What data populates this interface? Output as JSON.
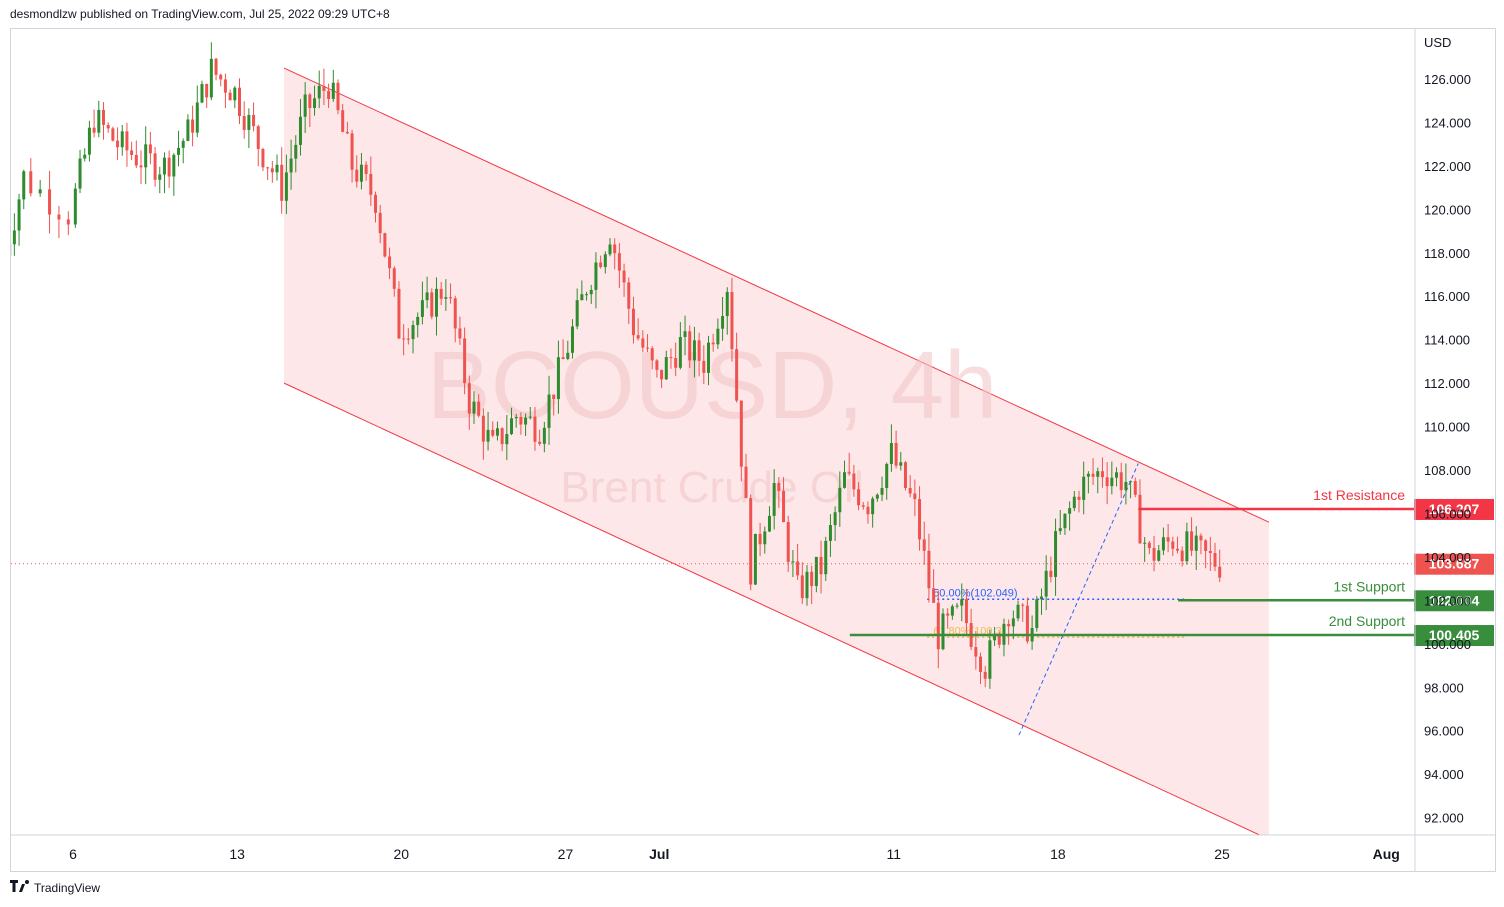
{
  "header": {
    "published_by": "desmondlzw published on TradingView.com, Jul 25, 2022 09:29 UTC+8"
  },
  "footer": {
    "brand": "TradingView",
    "logo_icon": "tradingview-logo-icon"
  },
  "colors": {
    "up": "#26a69a",
    "up_candle": "#2e8b2e",
    "down": "#ef5350",
    "channel_fill": "#fde3e4",
    "channel_line": "#f23645",
    "resistance": "#f23645",
    "support": "#388e3c",
    "fib_50": "#2962ff",
    "fib_618": "#f2b94d"
  },
  "chart_data": {
    "type": "candlestick",
    "watermark": {
      "symbol": "BCOUSD, 4h",
      "description": "Brent Crude Oil"
    },
    "y_axis": {
      "unit": "USD",
      "ticks": [
        "126.000",
        "124.000",
        "122.000",
        "120.000",
        "118.000",
        "116.000",
        "114.000",
        "112.000",
        "110.000",
        "108.000",
        "106.000",
        "104.000",
        "102.000",
        "100.000",
        "98.000",
        "96.000",
        "94.000",
        "92.000"
      ],
      "range": [
        91.2,
        128.3
      ]
    },
    "x_axis": {
      "ticks": [
        "6",
        "13",
        "20",
        "27",
        "Jul",
        "11",
        "18",
        "25",
        "Aug"
      ],
      "bold_ticks": [
        "Jul",
        "Aug"
      ]
    },
    "ohlc_close_path": [
      {
        "d": "Jun 3",
        "c": 117.0
      },
      {
        "d": "Jun 4",
        "c": 121.5
      },
      {
        "d": "Jun 6",
        "c": 119.8
      },
      {
        "d": "Jun 7",
        "c": 124.2
      },
      {
        "d": "Jun 8",
        "c": 123.0
      },
      {
        "d": "Jun 9",
        "c": 122.3
      },
      {
        "d": "Jun 10",
        "c": 122.0
      },
      {
        "d": "Jun 11",
        "c": 123.5
      },
      {
        "d": "Jun 12",
        "c": 126.4
      },
      {
        "d": "Jun 13",
        "c": 125.4
      },
      {
        "d": "Jun 14",
        "c": 123.0
      },
      {
        "d": "Jun 15",
        "c": 121.0
      },
      {
        "d": "Jun 16",
        "c": 124.5
      },
      {
        "d": "Jun 17",
        "c": 125.8
      },
      {
        "d": "Jun 18",
        "c": 122.0
      },
      {
        "d": "Jun 19",
        "c": 120.5
      },
      {
        "d": "Jun 20",
        "c": 114.5
      },
      {
        "d": "Jun 21",
        "c": 115.2
      },
      {
        "d": "Jun 22",
        "c": 116.5
      },
      {
        "d": "Jun 23",
        "c": 111.2
      },
      {
        "d": "Jun 24",
        "c": 109.0
      },
      {
        "d": "Jun 25",
        "c": 110.5
      },
      {
        "d": "Jun 26",
        "c": 110.0
      },
      {
        "d": "Jun 27",
        "c": 113.0
      },
      {
        "d": "Jun 28",
        "c": 116.5
      },
      {
        "d": "Jun 29",
        "c": 119.0
      },
      {
        "d": "Jun 30",
        "c": 114.6
      },
      {
        "d": "Jul 1",
        "c": 112.2
      },
      {
        "d": "Jul 2",
        "c": 113.8
      },
      {
        "d": "Jul 3",
        "c": 113.0
      },
      {
        "d": "Jul 4",
        "c": 116.6
      },
      {
        "d": "Jul 5",
        "c": 103.5
      },
      {
        "d": "Jul 6",
        "c": 107.3
      },
      {
        "d": "Jul 7",
        "c": 102.4
      },
      {
        "d": "Jul 8",
        "c": 103.5
      },
      {
        "d": "Jul 9",
        "c": 107.6
      },
      {
        "d": "Jul 10",
        "c": 106.5
      },
      {
        "d": "Jul 11",
        "c": 108.7
      },
      {
        "d": "Jul 12",
        "c": 106.2
      },
      {
        "d": "Jul 13",
        "c": 100.4
      },
      {
        "d": "Jul 14",
        "c": 101.5
      },
      {
        "d": "Jul 15",
        "c": 99.0
      },
      {
        "d": "Jul 16",
        "c": 101.6
      },
      {
        "d": "Jul 17",
        "c": 100.6
      },
      {
        "d": "Jul 18",
        "c": 104.5
      },
      {
        "d": "Jul 19",
        "c": 107.2
      },
      {
        "d": "Jul 20",
        "c": 108.0
      },
      {
        "d": "Jul 21",
        "c": 107.5
      },
      {
        "d": "Jul 22",
        "c": 104.0
      },
      {
        "d": "Jul 23",
        "c": 104.8
      },
      {
        "d": "Jul 24",
        "c": 104.2
      },
      {
        "d": "Jul 25",
        "c": 103.687
      }
    ],
    "channel": {
      "upper": [
        {
          "d": "Jun 15",
          "v": 126.5
        },
        {
          "d": "Jul 27",
          "v": 105.6
        }
      ],
      "lower": [
        {
          "d": "Jun 15",
          "v": 112.0
        },
        {
          "d": "Jul 27",
          "v": 91.0
        }
      ]
    },
    "fibonacci": [
      {
        "label": "50.00%(102.049)",
        "value": 102.049
      },
      {
        "label": "61.80%(100.3)",
        "value": 100.3
      }
    ],
    "levels": [
      {
        "name": "1st Resistance",
        "value": 106.207,
        "label": "106.207",
        "role": "resistance"
      },
      {
        "name": "1st Support",
        "value": 102.004,
        "label": "102.004",
        "role": "support"
      },
      {
        "name": "2nd Support",
        "value": 100.405,
        "label": "100.405",
        "role": "support"
      }
    ],
    "last_price": {
      "value": 103.687,
      "label": "103.687"
    }
  }
}
